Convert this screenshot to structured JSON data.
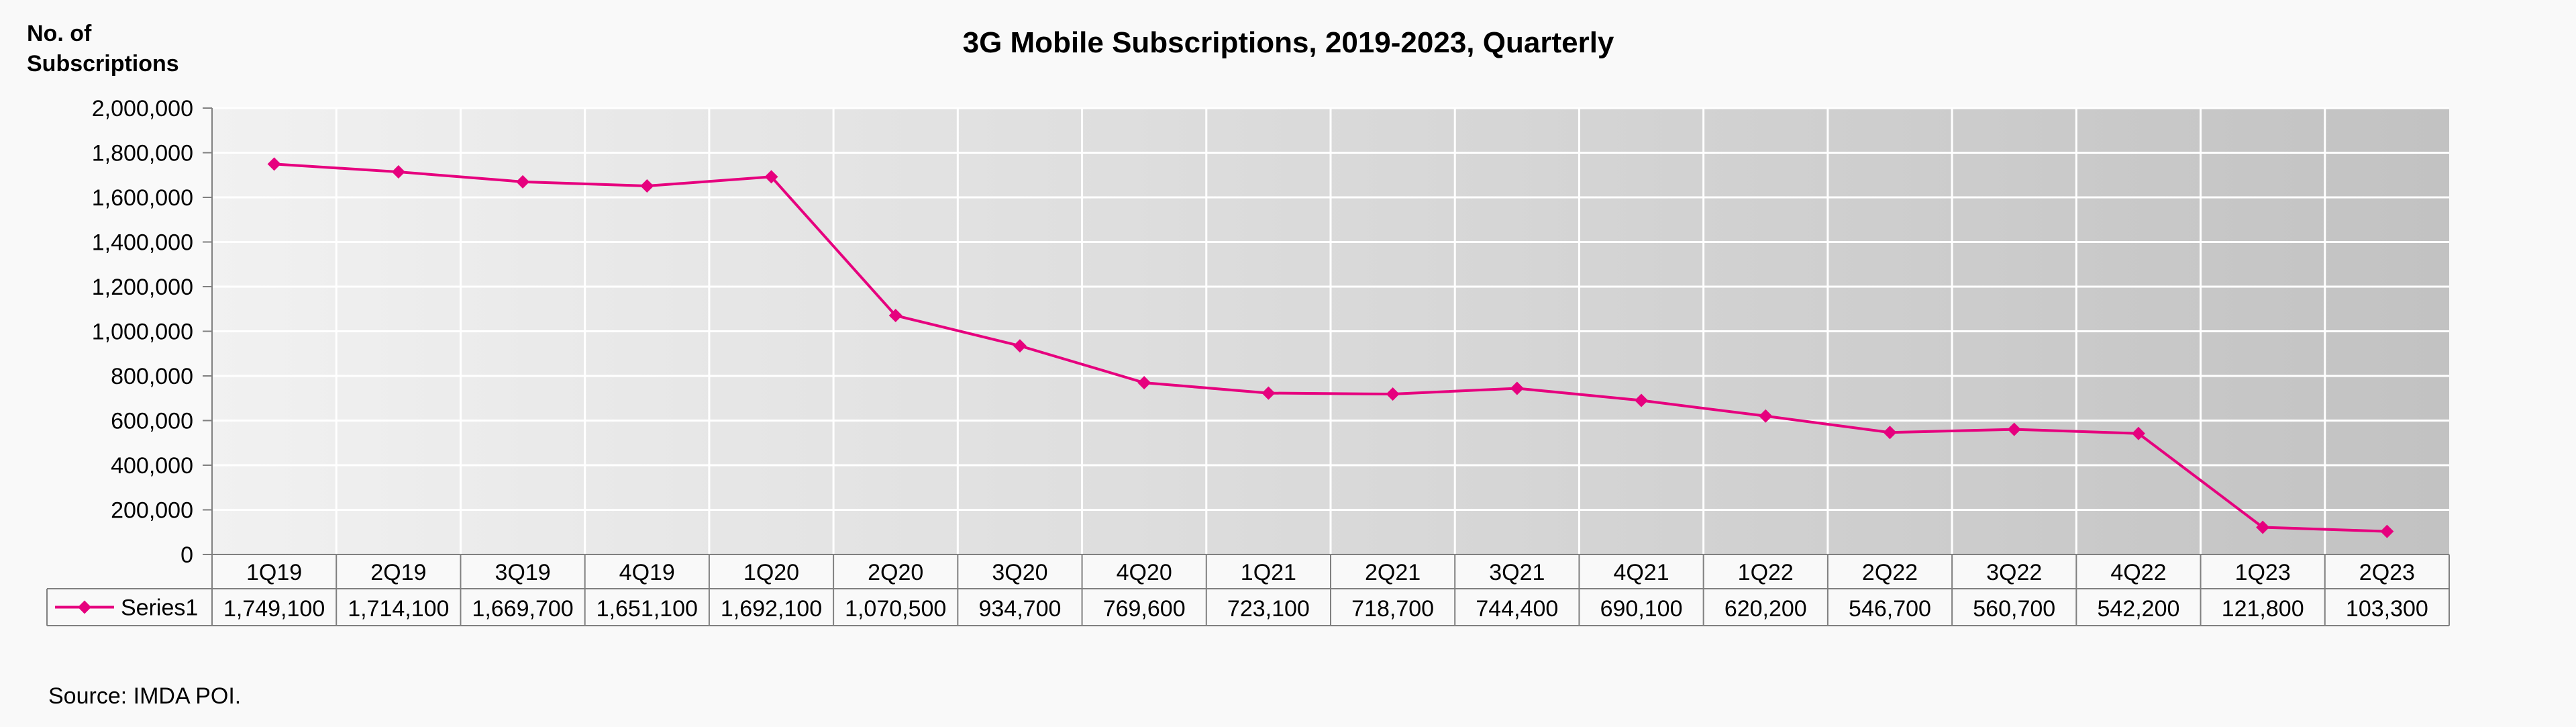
{
  "chart_data": {
    "type": "line",
    "title": "3G Mobile Subscriptions, 2019-2023, Quarterly",
    "ylabel_line1": "No. of",
    "ylabel_line2": "Subscriptions",
    "xlabel": "",
    "ylim": [
      0,
      2000000
    ],
    "yticks": [
      0,
      200000,
      400000,
      600000,
      800000,
      1000000,
      1200000,
      1400000,
      1600000,
      1800000,
      2000000
    ],
    "ytick_labels": [
      "0",
      "200,000",
      "400,000",
      "600,000",
      "800,000",
      "1,000,000",
      "1,200,000",
      "1,400,000",
      "1,600,000",
      "1,800,000",
      "2,000,000"
    ],
    "categories": [
      "1Q19",
      "2Q19",
      "3Q19",
      "4Q19",
      "1Q20",
      "2Q20",
      "3Q20",
      "4Q20",
      "1Q21",
      "2Q21",
      "3Q21",
      "4Q21",
      "1Q22",
      "2Q22",
      "3Q22",
      "4Q22",
      "1Q23",
      "2Q23"
    ],
    "series": [
      {
        "name": "Series1",
        "color": "#e6007e",
        "marker": "diamond",
        "values": [
          1749100,
          1714100,
          1669700,
          1651100,
          1692100,
          1070500,
          934700,
          769600,
          723100,
          718700,
          744400,
          690100,
          620200,
          546700,
          560700,
          542200,
          121800,
          103300
        ],
        "value_labels": [
          "1,749,100",
          "1,714,100",
          "1,669,700",
          "1,651,100",
          "1,692,100",
          "1,070,500",
          "934,700",
          "769,600",
          "723,100",
          "718,700",
          "744,400",
          "690,100",
          "620,200",
          "546,700",
          "560,700",
          "542,200",
          "121,800",
          "103,300"
        ]
      }
    ],
    "grid": true,
    "data_table": true,
    "background": "gradient light-to-dark gray"
  },
  "source": "Source: IMDA POI."
}
